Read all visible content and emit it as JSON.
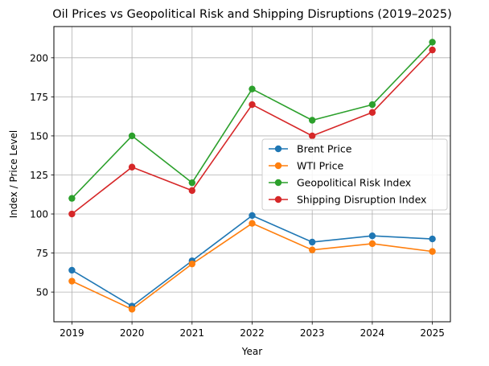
{
  "chart_data": {
    "type": "line",
    "title": "Oil Prices vs Geopolitical Risk and Shipping Disruptions (2019–2025)",
    "xlabel": "Year",
    "ylabel": "Index / Price Level",
    "x": [
      "2019",
      "2020",
      "2021",
      "2022",
      "2023",
      "2024",
      "2025"
    ],
    "xlim": [
      2018.7,
      2025.3
    ],
    "ylim": [
      31,
      220
    ],
    "yticks": [
      50,
      75,
      100,
      125,
      150,
      175,
      200
    ],
    "grid": true,
    "legend_position": "center-right",
    "series": [
      {
        "name": "Brent Price",
        "color": "#1f77b4",
        "values": [
          64,
          41,
          70,
          99,
          82,
          86,
          84
        ]
      },
      {
        "name": "WTI Price",
        "color": "#ff7f0e",
        "values": [
          57,
          39,
          68,
          94,
          77,
          81,
          76
        ]
      },
      {
        "name": "Geopolitical Risk Index",
        "color": "#2ca02c",
        "values": [
          110,
          150,
          120,
          180,
          160,
          170,
          210
        ]
      },
      {
        "name": "Shipping Disruption Index",
        "color": "#d62728",
        "values": [
          100,
          130,
          115,
          170,
          150,
          165,
          205
        ]
      }
    ]
  }
}
